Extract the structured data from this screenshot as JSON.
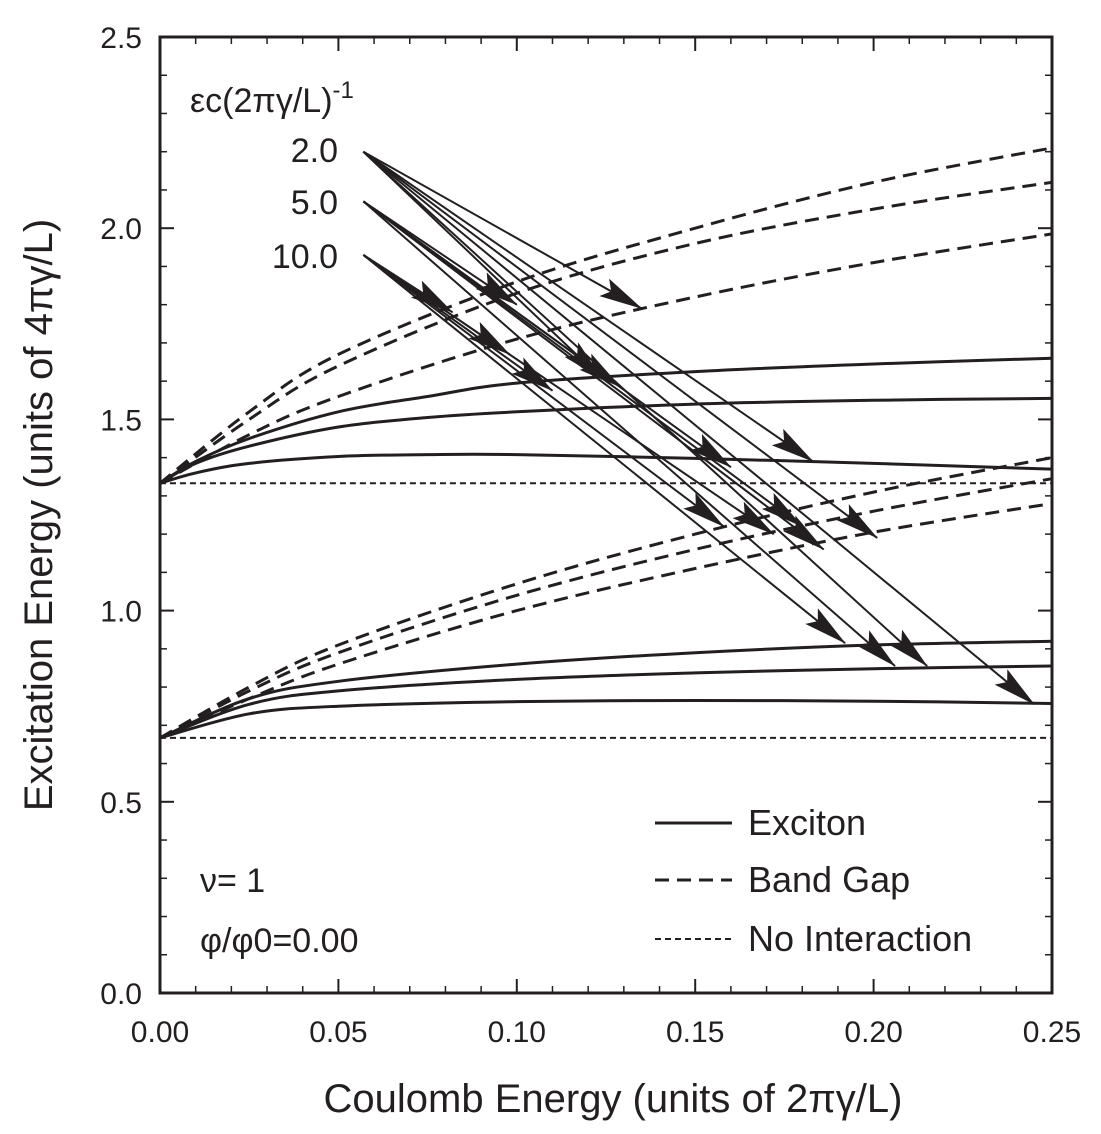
{
  "chart_data": {
    "type": "line",
    "xlabel": "Coulomb Energy (units of 2πγ/L)",
    "ylabel": "Excitation Energy (units of 4πγ/L)",
    "xlim": [
      0.0,
      0.25
    ],
    "ylim": [
      0.0,
      2.5
    ],
    "xticks": [
      "0.00",
      "0.05",
      "0.10",
      "0.15",
      "0.20",
      "0.25"
    ],
    "yticks": [
      "0.0",
      "0.5",
      "1.0",
      "1.5",
      "2.0",
      "2.5"
    ],
    "grid": false,
    "legend_position": "bottom-right",
    "legend": [
      {
        "label": "Exciton",
        "style": "solid"
      },
      {
        "label": "Band Gap",
        "style": "dashed"
      },
      {
        "label": "No Interaction",
        "style": "dotted"
      }
    ],
    "annotations": {
      "param_label": "εc(2πγ/L)",
      "param_exp": "-1",
      "param_values": [
        "2.0",
        "5.0",
        "10.0"
      ],
      "nu": "ν= 1",
      "flux": "φ/φ0=0.00"
    },
    "series": [
      {
        "style": "solid",
        "group": "upper",
        "param": "2.0",
        "x": [
          0,
          0.01,
          0.025,
          0.05,
          0.075,
          0.1,
          0.15,
          0.2,
          0.25
        ],
        "y": [
          1.333,
          1.39,
          1.45,
          1.52,
          1.56,
          1.595,
          1.625,
          1.645,
          1.66
        ]
      },
      {
        "style": "solid",
        "group": "upper",
        "param": "5.0",
        "x": [
          0,
          0.01,
          0.025,
          0.05,
          0.075,
          0.1,
          0.15,
          0.2,
          0.25
        ],
        "y": [
          1.333,
          1.385,
          1.43,
          1.48,
          1.505,
          1.52,
          1.54,
          1.55,
          1.555
        ]
      },
      {
        "style": "solid",
        "group": "upper",
        "param": "10.0",
        "x": [
          0,
          0.01,
          0.025,
          0.05,
          0.075,
          0.1,
          0.15,
          0.2,
          0.25
        ],
        "y": [
          1.333,
          1.36,
          1.385,
          1.403,
          1.408,
          1.408,
          1.398,
          1.385,
          1.37
        ]
      },
      {
        "style": "dashed",
        "group": "upper",
        "param": "2.0",
        "x": [
          0,
          0.025,
          0.05,
          0.1,
          0.15,
          0.2,
          0.25
        ],
        "y": [
          1.333,
          1.52,
          1.67,
          1.86,
          2.0,
          2.12,
          2.21
        ]
      },
      {
        "style": "dashed",
        "group": "upper",
        "param": "5.0",
        "x": [
          0,
          0.025,
          0.05,
          0.1,
          0.15,
          0.2,
          0.25
        ],
        "y": [
          1.333,
          1.5,
          1.64,
          1.83,
          1.96,
          2.05,
          2.12
        ]
      },
      {
        "style": "dashed",
        "group": "upper",
        "param": "10.0",
        "x": [
          0,
          0.025,
          0.05,
          0.1,
          0.15,
          0.2,
          0.25
        ],
        "y": [
          1.333,
          1.46,
          1.56,
          1.71,
          1.82,
          1.91,
          1.985
        ]
      },
      {
        "style": "dotted",
        "group": "upper",
        "x": [
          0,
          0.25
        ],
        "y": [
          1.333,
          1.333
        ]
      },
      {
        "style": "solid",
        "group": "lower",
        "param": "2.0",
        "x": [
          0,
          0.025,
          0.05,
          0.1,
          0.15,
          0.2,
          0.25
        ],
        "y": [
          0.667,
          0.77,
          0.815,
          0.86,
          0.89,
          0.91,
          0.92
        ]
      },
      {
        "style": "solid",
        "group": "lower",
        "param": "5.0",
        "x": [
          0,
          0.025,
          0.05,
          0.1,
          0.15,
          0.2,
          0.25
        ],
        "y": [
          0.667,
          0.755,
          0.79,
          0.82,
          0.837,
          0.848,
          0.855
        ]
      },
      {
        "style": "solid",
        "group": "lower",
        "param": "10.0",
        "x": [
          0,
          0.025,
          0.05,
          0.1,
          0.15,
          0.2,
          0.25
        ],
        "y": [
          0.667,
          0.73,
          0.75,
          0.762,
          0.765,
          0.763,
          0.757
        ]
      },
      {
        "style": "dashed",
        "group": "lower",
        "param": "2.0",
        "x": [
          0,
          0.025,
          0.05,
          0.1,
          0.15,
          0.2,
          0.25
        ],
        "y": [
          0.667,
          0.8,
          0.91,
          1.07,
          1.2,
          1.31,
          1.4
        ]
      },
      {
        "style": "dashed",
        "group": "lower",
        "param": "5.0",
        "x": [
          0,
          0.025,
          0.05,
          0.1,
          0.15,
          0.2,
          0.25
        ],
        "y": [
          0.667,
          0.79,
          0.89,
          1.04,
          1.16,
          1.26,
          1.345
        ]
      },
      {
        "style": "dashed",
        "group": "lower",
        "param": "10.0",
        "x": [
          0,
          0.025,
          0.05,
          0.1,
          0.15,
          0.2,
          0.25
        ],
        "y": [
          0.667,
          0.77,
          0.86,
          1.0,
          1.11,
          1.205,
          1.28
        ]
      },
      {
        "style": "dotted",
        "group": "lower",
        "x": [
          0,
          0.25
        ],
        "y": [
          0.667,
          0.667
        ]
      }
    ],
    "arrows": [
      {
        "param": "2.0",
        "from": [
          0.057,
          2.2
        ],
        "to": [
          0.135,
          1.79
        ]
      },
      {
        "param": "2.0",
        "from": [
          0.057,
          2.2
        ],
        "to": [
          0.124,
          1.605
        ]
      },
      {
        "param": "2.0",
        "from": [
          0.057,
          2.2
        ],
        "to": [
          0.183,
          1.39
        ]
      },
      {
        "param": "2.0",
        "from": [
          0.057,
          2.2
        ],
        "to": [
          0.201,
          1.19
        ]
      },
      {
        "param": "2.0",
        "from": [
          0.057,
          2.2
        ],
        "to": [
          0.215,
          0.855
        ]
      },
      {
        "param": "2.0",
        "from": [
          0.057,
          2.2
        ],
        "to": [
          0.245,
          0.755
        ]
      },
      {
        "param": "5.0",
        "from": [
          0.057,
          2.07
        ],
        "to": [
          0.1,
          1.8
        ]
      },
      {
        "param": "5.0",
        "from": [
          0.057,
          2.07
        ],
        "to": [
          0.129,
          1.585
        ]
      },
      {
        "param": "5.0",
        "from": [
          0.057,
          2.07
        ],
        "to": [
          0.16,
          1.375
        ]
      },
      {
        "param": "5.0",
        "from": [
          0.057,
          2.07
        ],
        "to": [
          0.18,
          1.22
        ]
      },
      {
        "param": "5.0",
        "from": [
          0.057,
          2.07
        ],
        "to": [
          0.186,
          1.16
        ]
      },
      {
        "param": "5.0",
        "from": [
          0.057,
          2.07
        ],
        "to": [
          0.206,
          0.855
        ]
      },
      {
        "param": "10.0",
        "from": [
          0.057,
          1.93
        ],
        "to": [
          0.082,
          1.78
        ]
      },
      {
        "param": "10.0",
        "from": [
          0.057,
          1.93
        ],
        "to": [
          0.098,
          1.67
        ]
      },
      {
        "param": "10.0",
        "from": [
          0.057,
          1.93
        ],
        "to": [
          0.11,
          1.575
        ]
      },
      {
        "param": "10.0",
        "from": [
          0.057,
          1.93
        ],
        "to": [
          0.158,
          1.22
        ]
      },
      {
        "param": "10.0",
        "from": [
          0.057,
          1.93
        ],
        "to": [
          0.172,
          1.2
        ]
      },
      {
        "param": "10.0",
        "from": [
          0.057,
          1.93
        ],
        "to": [
          0.192,
          0.915
        ]
      }
    ]
  }
}
